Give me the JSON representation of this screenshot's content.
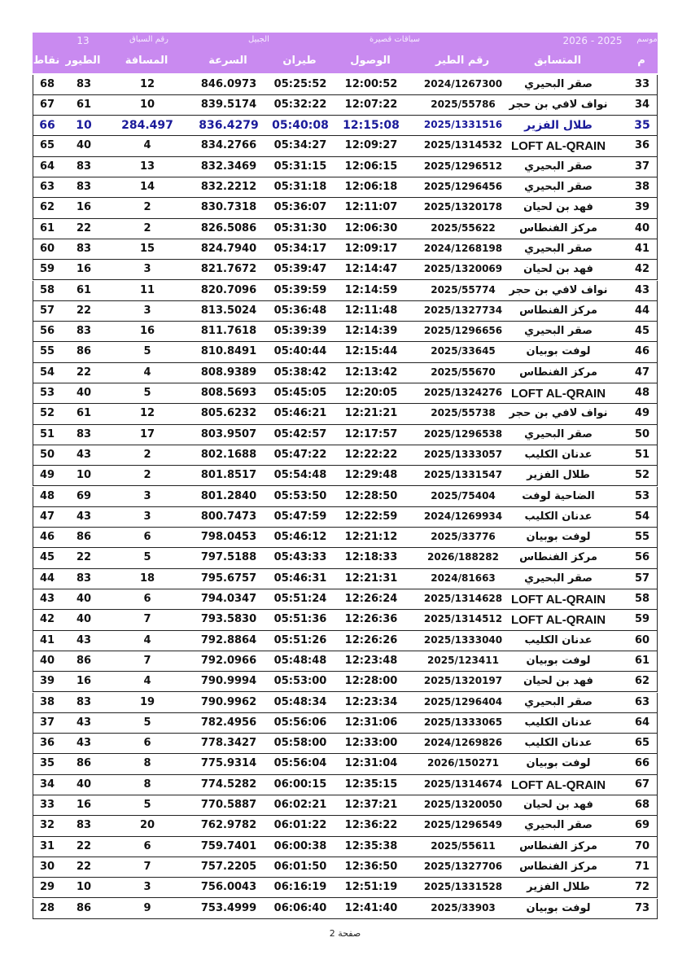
{
  "header": {
    "season_label": "موسم",
    "season": "2026 - 2025",
    "race_type": "سباقات قصيرة",
    "location": "الجبيل",
    "race_no_label": "رقم السباق",
    "race_no": "13"
  },
  "table": {
    "columns": [
      "م",
      "المتسابق",
      "رقم الطير",
      "الوصول",
      "طيران",
      "السرعة",
      "المسافة",
      "الطيور",
      "نقاط"
    ],
    "rows": [
      [
        "33",
        "صقر البحيري",
        "2024/1267300",
        "12:00:52",
        "05:25:52",
        "846.0973",
        "12",
        "83",
        "68"
      ],
      [
        "34",
        "نواف لافي بن حجر",
        "2025/55786",
        "12:07:22",
        "05:32:22",
        "839.5174",
        "10",
        "61",
        "67"
      ],
      [
        "35",
        "طلال الفزير",
        "2025/1331516",
        "12:15:08",
        "05:40:08",
        "836.4279",
        "284.497",
        "10",
        "66"
      ],
      [
        "36",
        "LOFT AL-QRAIN",
        "2025/1314532",
        "12:09:27",
        "05:34:27",
        "834.2766",
        "4",
        "40",
        "65"
      ],
      [
        "37",
        "صقر البحيري",
        "2025/1296512",
        "12:06:15",
        "05:31:15",
        "832.3469",
        "13",
        "83",
        "64"
      ],
      [
        "38",
        "صقر البحيري",
        "2025/1296456",
        "12:06:18",
        "05:31:18",
        "832.2212",
        "14",
        "83",
        "63"
      ],
      [
        "39",
        "فهد بن لحيان",
        "2025/1320178",
        "12:11:07",
        "05:36:07",
        "830.7318",
        "2",
        "16",
        "62"
      ],
      [
        "40",
        "مركز الفنطاس",
        "2025/55622",
        "12:06:30",
        "05:31:30",
        "826.5086",
        "2",
        "22",
        "61"
      ],
      [
        "41",
        "صقر البحيري",
        "2024/1268198",
        "12:09:17",
        "05:34:17",
        "824.7940",
        "15",
        "83",
        "60"
      ],
      [
        "42",
        "فهد بن لحيان",
        "2025/1320069",
        "12:14:47",
        "05:39:47",
        "821.7672",
        "3",
        "16",
        "59"
      ],
      [
        "43",
        "نواف لافي بن حجر",
        "2025/55774",
        "12:14:59",
        "05:39:59",
        "820.7096",
        "11",
        "61",
        "58"
      ],
      [
        "44",
        "مركز الفنطاس",
        "2025/1327734",
        "12:11:48",
        "05:36:48",
        "813.5024",
        "3",
        "22",
        "57"
      ],
      [
        "45",
        "صقر البحيري",
        "2025/1296656",
        "12:14:39",
        "05:39:39",
        "811.7618",
        "16",
        "83",
        "56"
      ],
      [
        "46",
        "لوفت بوبيان",
        "2025/33645",
        "12:15:44",
        "05:40:44",
        "810.8491",
        "5",
        "86",
        "55"
      ],
      [
        "47",
        "مركز الفنطاس",
        "2025/55670",
        "12:13:42",
        "05:38:42",
        "808.9389",
        "4",
        "22",
        "54"
      ],
      [
        "48",
        "LOFT AL-QRAIN",
        "2025/1324276",
        "12:20:05",
        "05:45:05",
        "808.5693",
        "5",
        "40",
        "53"
      ],
      [
        "49",
        "نواف لافي بن حجر",
        "2025/55738",
        "12:21:21",
        "05:46:21",
        "805.6232",
        "12",
        "61",
        "52"
      ],
      [
        "50",
        "صقر البحيري",
        "2025/1296538",
        "12:17:57",
        "05:42:57",
        "803.9507",
        "17",
        "83",
        "51"
      ],
      [
        "51",
        "عدنان الكليب",
        "2025/1333057",
        "12:22:22",
        "05:47:22",
        "802.1688",
        "2",
        "43",
        "50"
      ],
      [
        "52",
        "طلال الفزير",
        "2025/1331547",
        "12:29:48",
        "05:54:48",
        "801.8517",
        "2",
        "10",
        "49"
      ],
      [
        "53",
        "الضاحية لوفت",
        "2025/75404",
        "12:28:50",
        "05:53:50",
        "801.2840",
        "3",
        "69",
        "48"
      ],
      [
        "54",
        "عدنان الكليب",
        "2024/1269934",
        "12:22:59",
        "05:47:59",
        "800.7473",
        "3",
        "43",
        "47"
      ],
      [
        "55",
        "لوفت بوبيان",
        "2025/33776",
        "12:21:12",
        "05:46:12",
        "798.0453",
        "6",
        "86",
        "46"
      ],
      [
        "56",
        "مركز الفنطاس",
        "2026/188282",
        "12:18:33",
        "05:43:33",
        "797.5188",
        "5",
        "22",
        "45"
      ],
      [
        "57",
        "صقر البحيري",
        "2024/81663",
        "12:21:31",
        "05:46:31",
        "795.6757",
        "18",
        "83",
        "44"
      ],
      [
        "58",
        "LOFT AL-QRAIN",
        "2025/1314628",
        "12:26:24",
        "05:51:24",
        "794.0347",
        "6",
        "40",
        "43"
      ],
      [
        "59",
        "LOFT AL-QRAIN",
        "2025/1314512",
        "12:26:36",
        "05:51:36",
        "793.5830",
        "7",
        "40",
        "42"
      ],
      [
        "60",
        "عدنان الكليب",
        "2025/1333040",
        "12:26:26",
        "05:51:26",
        "792.8864",
        "4",
        "43",
        "41"
      ],
      [
        "61",
        "لوفت بوبيان",
        "2025/123411",
        "12:23:48",
        "05:48:48",
        "792.0966",
        "7",
        "86",
        "40"
      ],
      [
        "62",
        "فهد بن لحيان",
        "2025/1320197",
        "12:28:00",
        "05:53:00",
        "790.9994",
        "4",
        "16",
        "39"
      ],
      [
        "63",
        "صقر البحيري",
        "2025/1296404",
        "12:23:34",
        "05:48:34",
        "790.9962",
        "19",
        "83",
        "38"
      ],
      [
        "64",
        "عدنان الكليب",
        "2025/1333065",
        "12:31:06",
        "05:56:06",
        "782.4956",
        "5",
        "43",
        "37"
      ],
      [
        "65",
        "عدنان الكليب",
        "2024/1269826",
        "12:33:00",
        "05:58:00",
        "778.3427",
        "6",
        "43",
        "36"
      ],
      [
        "66",
        "لوفت بوبيان",
        "2026/150271",
        "12:31:04",
        "05:56:04",
        "775.9314",
        "8",
        "86",
        "35"
      ],
      [
        "67",
        "LOFT AL-QRAIN",
        "2025/1314674",
        "12:35:15",
        "06:00:15",
        "774.5282",
        "8",
        "40",
        "34"
      ],
      [
        "68",
        "فهد بن لحيان",
        "2025/1320050",
        "12:37:21",
        "06:02:21",
        "770.5887",
        "5",
        "16",
        "33"
      ],
      [
        "69",
        "صقر البحيري",
        "2025/1296549",
        "12:36:22",
        "06:01:22",
        "762.9782",
        "20",
        "83",
        "32"
      ],
      [
        "70",
        "مركز الفنطاس",
        "2025/55611",
        "12:35:38",
        "06:00:38",
        "759.7401",
        "6",
        "22",
        "31"
      ],
      [
        "71",
        "مركز الفنطاس",
        "2025/1327706",
        "12:36:50",
        "06:01:50",
        "757.2205",
        "7",
        "22",
        "30"
      ],
      [
        "72",
        "طلال الفزير",
        "2025/1331528",
        "12:51:19",
        "06:16:19",
        "756.0043",
        "3",
        "10",
        "29"
      ],
      [
        "73",
        "لوفت بوبيان",
        "2025/33903",
        "12:41:40",
        "06:06:40",
        "753.4999",
        "9",
        "86",
        "28"
      ]
    ]
  },
  "footer": {
    "page": "صفحة 2"
  }
}
